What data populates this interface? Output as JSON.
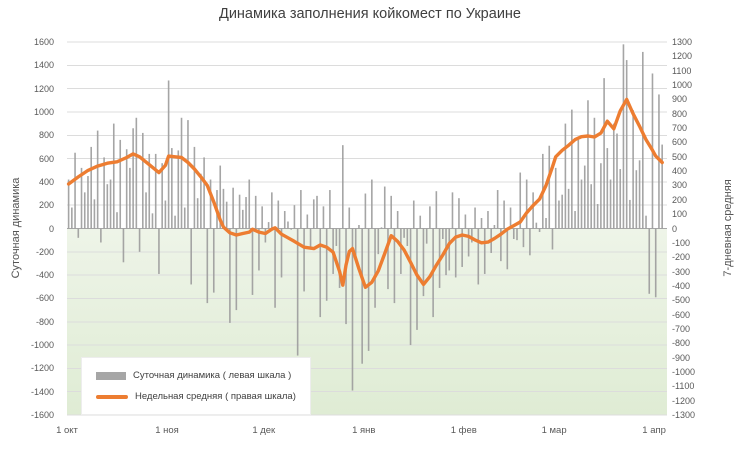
{
  "title": "Динамика заполнения койкомест по Украине",
  "left_axis": {
    "title": "Суточная динамика",
    "min": -1600,
    "max": 1600,
    "step": 200
  },
  "right_axis": {
    "title": "7-дневная средняя",
    "min": -1300,
    "max": 1300,
    "step": 100
  },
  "x_axis": {
    "labels": [
      "1 окт",
      "1 ноя",
      "1 дек",
      "1 янв",
      "1 фев",
      "1 мар",
      "1 апр"
    ],
    "tick_days": [
      0,
      31,
      61,
      92,
      123,
      151,
      182
    ]
  },
  "legend": {
    "bar_label": "Суточная динамика ( левая шкала )",
    "line_label": "Недельная средняя ( правая шкала)"
  },
  "colors": {
    "bar": "#9d9d9d",
    "line": "#ED7D31",
    "grid": "#dcdcdc",
    "zero_line": "#a6a6a6",
    "below_zero_fill": "#e6f0dd"
  },
  "chart_data": {
    "type": "bar",
    "title": "Динамика заполнения койкомест по Украине",
    "x_start_label": "1 окт",
    "x_end_label": "1 апр",
    "grid": true,
    "legend_position": "bottom-left-inside",
    "left_axis_range": [
      -1600,
      1600
    ],
    "right_axis_range": [
      -1300,
      1300
    ],
    "days_total": 185,
    "series": [
      {
        "name": "Суточная динамика",
        "type": "bar",
        "axis": "left",
        "values": [
          420,
          180,
          650,
          -80,
          520,
          310,
          450,
          700,
          250,
          840,
          -120,
          610,
          380,
          420,
          900,
          140,
          760,
          -290,
          680,
          520,
          860,
          950,
          -200,
          820,
          310,
          640,
          130,
          640,
          -390,
          560,
          240,
          1270,
          690,
          110,
          670,
          950,
          180,
          930,
          -480,
          700,
          260,
          470,
          610,
          -640,
          420,
          -550,
          330,
          540,
          340,
          230,
          -810,
          350,
          -700,
          290,
          160,
          270,
          420,
          -570,
          280,
          -360,
          190,
          -120,
          55,
          310,
          -680,
          240,
          -420,
          150,
          60,
          -10,
          200,
          -1090,
          330,
          -540,
          120,
          -180,
          250,
          280,
          -760,
          190,
          -620,
          330,
          -390,
          -150,
          -510,
          715,
          -820,
          180,
          -1390,
          -240,
          30,
          -1160,
          300,
          -1050,
          420,
          -680,
          -220,
          10,
          360,
          -520,
          280,
          -640,
          150,
          -390,
          -80,
          -150,
          -1000,
          240,
          -870,
          110,
          -580,
          -130,
          190,
          -760,
          320,
          -510,
          -90,
          -400,
          -360,
          310,
          -420,
          260,
          -330,
          120,
          -240,
          -120,
          180,
          -480,
          90,
          -390,
          150,
          -210,
          30,
          330,
          -280,
          240,
          -350,
          180,
          -90,
          -100,
          480,
          -160,
          420,
          -230,
          310,
          50,
          -30,
          640,
          90,
          710,
          -180,
          520,
          240,
          290,
          900,
          340,
          1020,
          150,
          760,
          420,
          540,
          1100,
          380,
          950,
          210,
          560,
          1290,
          690,
          420,
          900,
          815,
          510,
          1580,
          1445,
          245,
          1015,
          500,
          585,
          1515,
          110,
          -560,
          1330,
          -590,
          1150,
          720
        ]
      },
      {
        "name": "Недельная средняя",
        "type": "line",
        "axis": "right",
        "keypoints": [
          [
            0,
            310
          ],
          [
            3,
            360
          ],
          [
            6,
            405
          ],
          [
            9,
            435
          ],
          [
            12,
            455
          ],
          [
            15,
            465
          ],
          [
            18,
            495
          ],
          [
            20,
            520
          ],
          [
            22,
            500
          ],
          [
            25,
            445
          ],
          [
            28,
            390
          ],
          [
            30,
            440
          ],
          [
            31,
            505
          ],
          [
            33,
            500
          ],
          [
            35,
            495
          ],
          [
            37,
            460
          ],
          [
            39,
            415
          ],
          [
            41,
            360
          ],
          [
            43,
            300
          ],
          [
            45,
            185
          ],
          [
            47,
            60
          ],
          [
            48,
            10
          ],
          [
            50,
            -30
          ],
          [
            52,
            -45
          ],
          [
            54,
            -35
          ],
          [
            56,
            -25
          ],
          [
            57,
            -5
          ],
          [
            59,
            -25
          ],
          [
            61,
            -35
          ],
          [
            63,
            -5
          ],
          [
            64,
            5
          ],
          [
            66,
            -40
          ],
          [
            68,
            -65
          ],
          [
            70,
            -90
          ],
          [
            73,
            -130
          ],
          [
            76,
            -140
          ],
          [
            78,
            -115
          ],
          [
            80,
            -130
          ],
          [
            82,
            -165
          ],
          [
            84,
            -300
          ],
          [
            85,
            -395
          ],
          [
            86,
            -255
          ],
          [
            87,
            -160
          ],
          [
            88,
            -140
          ],
          [
            90,
            -280
          ],
          [
            92,
            -410
          ],
          [
            94,
            -375
          ],
          [
            96,
            -295
          ],
          [
            98,
            -175
          ],
          [
            100,
            -50
          ],
          [
            102,
            -90
          ],
          [
            104,
            -150
          ],
          [
            106,
            -235
          ],
          [
            108,
            -325
          ],
          [
            110,
            -390
          ],
          [
            112,
            -335
          ],
          [
            114,
            -255
          ],
          [
            116,
            -185
          ],
          [
            118,
            -105
          ],
          [
            120,
            -60
          ],
          [
            122,
            -45
          ],
          [
            124,
            -55
          ],
          [
            126,
            -80
          ],
          [
            128,
            -100
          ],
          [
            130,
            -95
          ],
          [
            132,
            -70
          ],
          [
            134,
            -40
          ],
          [
            136,
            -5
          ],
          [
            138,
            20
          ],
          [
            140,
            45
          ],
          [
            142,
            110
          ],
          [
            144,
            160
          ],
          [
            146,
            205
          ],
          [
            148,
            300
          ],
          [
            150,
            430
          ],
          [
            151,
            500
          ],
          [
            153,
            545
          ],
          [
            155,
            580
          ],
          [
            157,
            620
          ],
          [
            159,
            640
          ],
          [
            161,
            645
          ],
          [
            163,
            638
          ],
          [
            165,
            665
          ],
          [
            167,
            748
          ],
          [
            169,
            695
          ],
          [
            171,
            820
          ],
          [
            173,
            900
          ],
          [
            175,
            800
          ],
          [
            177,
            712
          ],
          [
            179,
            620
          ],
          [
            181,
            545
          ],
          [
            182,
            505
          ],
          [
            184,
            460
          ]
        ]
      }
    ]
  }
}
